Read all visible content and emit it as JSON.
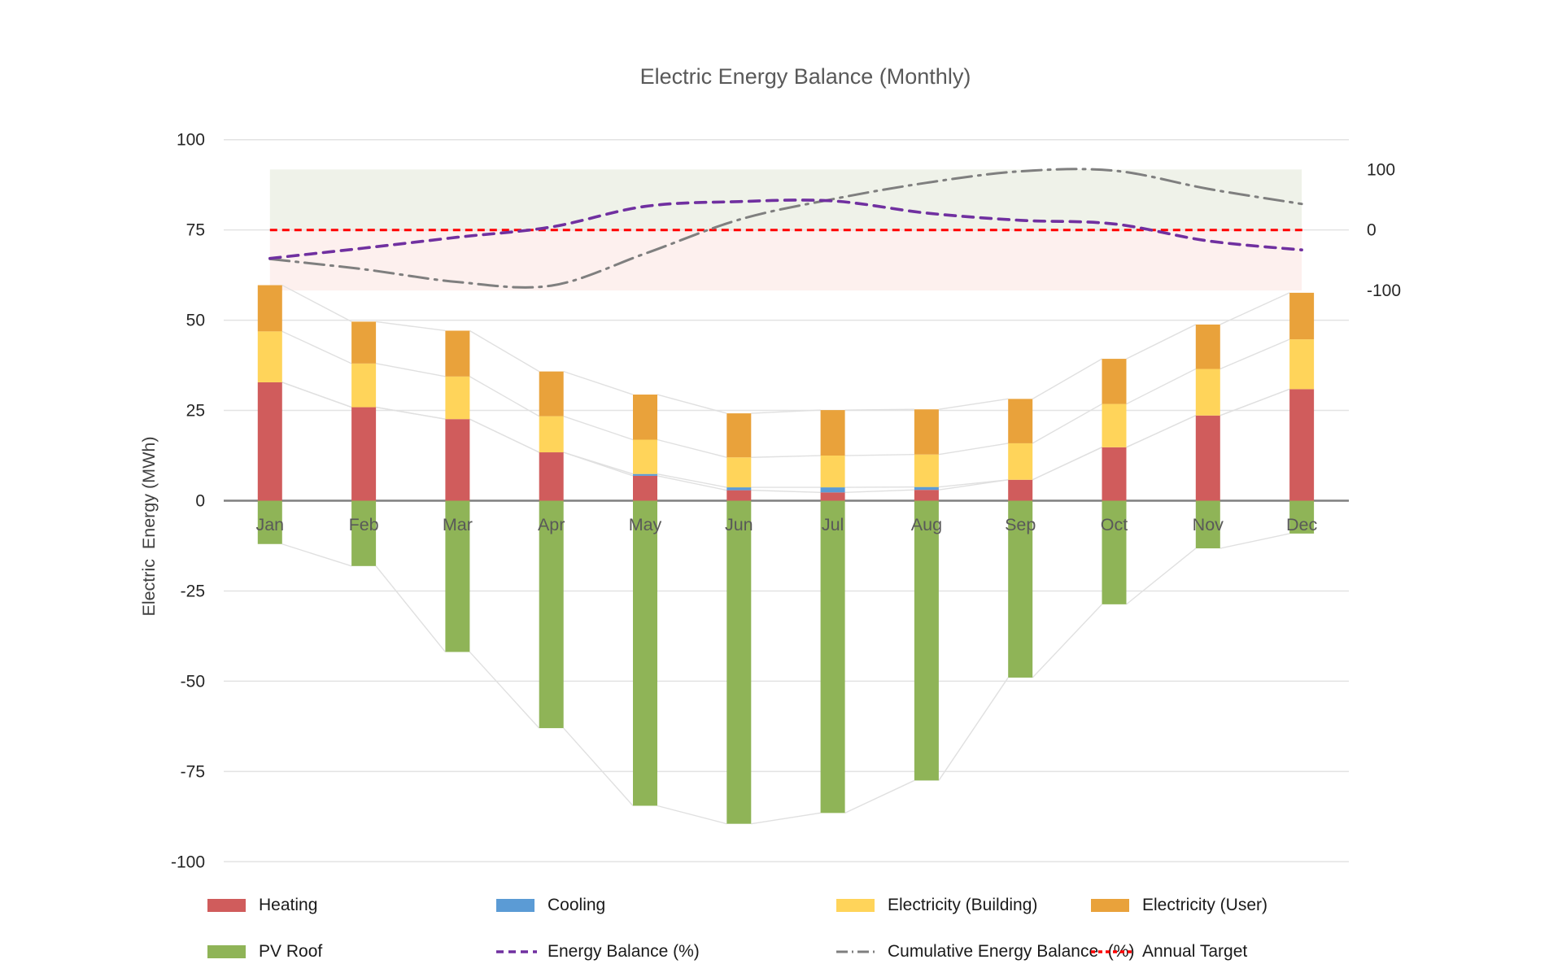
{
  "title": "Electric Energy Balance (Monthly)",
  "y_axis": {
    "title": "Electric  Energy (MWh)",
    "ticks": [
      100,
      75,
      50,
      25,
      0,
      -25,
      -50,
      -75,
      -100
    ],
    "min": -100,
    "max": 100
  },
  "right_axis": {
    "ticks": [
      100,
      0,
      -100
    ],
    "min": -100,
    "max": 100
  },
  "chart_data": {
    "type": "bar",
    "subtype": "stacked-bar-with-lines",
    "title": "Electric Energy Balance (Monthly)",
    "xlabel": "",
    "ylabel": "Electric  Energy (MWh)",
    "ylabel_right": "",
    "ylim_left": [
      -100,
      100
    ],
    "ylim_right": [
      -100,
      100
    ],
    "grid": true,
    "legend_position": "bottom",
    "categories": [
      "Jan",
      "Feb",
      "Mar",
      "Apr",
      "May",
      "Jun",
      "Jul",
      "Aug",
      "Sep",
      "Oct",
      "Nov",
      "Dec"
    ],
    "series": [
      {
        "name": "Heating",
        "type": "bar",
        "axis": "left",
        "color": "#D05C5C",
        "values": [
          32.8,
          25.9,
          22.6,
          13.4,
          6.9,
          2.9,
          2.3,
          3.0,
          5.8,
          14.8,
          23.6,
          30.9
        ]
      },
      {
        "name": "Cooling",
        "type": "bar",
        "axis": "left",
        "color": "#5B9BD5",
        "values": [
          0,
          0,
          0,
          0,
          0.5,
          0.8,
          1.4,
          0.8,
          0,
          0,
          0,
          0
        ]
      },
      {
        "name": "Electricity (Building)",
        "type": "bar",
        "axis": "left",
        "color": "#FFD45A",
        "values": [
          14.1,
          12.1,
          11.8,
          10.0,
          9.5,
          8.3,
          8.8,
          9.0,
          10.1,
          12.0,
          12.9,
          13.8
        ]
      },
      {
        "name": "Electricity (User)",
        "type": "bar",
        "axis": "left",
        "color": "#E9A23B",
        "values": [
          12.8,
          11.6,
          12.7,
          12.4,
          12.5,
          12.2,
          12.6,
          12.5,
          12.3,
          12.5,
          12.3,
          12.9
        ]
      },
      {
        "name": "PV Roof",
        "type": "bar",
        "axis": "left",
        "color": "#8FB457",
        "values": [
          -12.0,
          -18.1,
          -41.9,
          -63.0,
          -84.5,
          -89.5,
          -86.5,
          -77.5,
          -49.0,
          -28.7,
          -13.2,
          -9.1
        ]
      },
      {
        "name": "Energy Balance (%)",
        "type": "line",
        "axis": "right",
        "style": "dashed",
        "color": "#7030A0",
        "values": [
          -47,
          -30,
          -12,
          5,
          39,
          47,
          48,
          28,
          16,
          10,
          -18,
          -33
        ]
      },
      {
        "name": "Cumulative Energy Balance  (%)",
        "type": "line",
        "axis": "right",
        "style": "dashdot",
        "color": "#7F7F7F",
        "values": [
          -48,
          -65,
          -86,
          -92,
          -39,
          17,
          51,
          78,
          97,
          98,
          68,
          43
        ]
      },
      {
        "name": "Annual Target",
        "type": "line",
        "axis": "right",
        "style": "dashed-short",
        "color": "#FF0000",
        "constant": 0
      }
    ],
    "bands": [
      {
        "axis": "right",
        "from": 0,
        "to": 100,
        "color": "#EFF2E9"
      },
      {
        "axis": "right",
        "from": -100,
        "to": 0,
        "color": "#FDF0EE"
      }
    ]
  },
  "legend": {
    "items": [
      {
        "label": "Heating",
        "icon": "swatch",
        "color": "#D05C5C"
      },
      {
        "label": "Cooling",
        "icon": "swatch",
        "color": "#5B9BD5"
      },
      {
        "label": "Electricity (Building)",
        "icon": "swatch",
        "color": "#FFD45A"
      },
      {
        "label": "Electricity (User)",
        "icon": "swatch",
        "color": "#E9A23B"
      },
      {
        "label": "PV Roof",
        "icon": "swatch",
        "color": "#8FB457"
      },
      {
        "label": "Energy Balance (%)",
        "icon": "dashed-line",
        "color": "#7030A0"
      },
      {
        "label": "Cumulative Energy Balance  (%)",
        "icon": "dashdot-line",
        "color": "#7F7F7F"
      },
      {
        "label": "Annual Target",
        "icon": "dashed-short-line",
        "color": "#FF0000"
      }
    ]
  },
  "colors": {
    "gridline": "#E3E3E3",
    "zero_line": "#7F7F7F",
    "connector_line": "#E0E0E0",
    "title_text": "#595959",
    "tick_text": "#262626",
    "month_text": "#595959",
    "axis_title_text": "#3F3F3F"
  }
}
